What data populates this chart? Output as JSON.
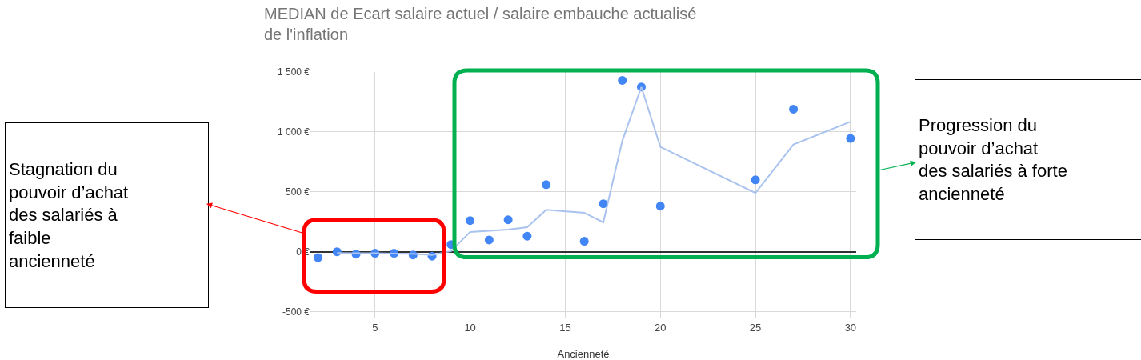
{
  "chart_data": {
    "type": "scatter",
    "title": "MEDIAN de Ecart salaire actuel / salaire embauche actualisé\nde l'inflation",
    "xlabel": "Ancienneté",
    "x": [
      2,
      3,
      4,
      5,
      6,
      7,
      8,
      9,
      10,
      11,
      12,
      13,
      14,
      16,
      17,
      18,
      19,
      20,
      25,
      27,
      30
    ],
    "series": [
      {
        "color": "#4285f4",
        "marker": "circle",
        "values": [
          -50,
          0,
          -20,
          -13,
          -13,
          -27,
          -37,
          60,
          260,
          98,
          267,
          130,
          560,
          87,
          400,
          1430,
          1375,
          380,
          600,
          1190,
          945
        ]
      },
      {
        "type": "line",
        "color": "#a9c2ee",
        "line_style": "solid",
        "x": [
          3,
          4,
          5,
          6,
          7,
          8,
          9,
          10,
          11,
          12,
          13,
          14,
          16,
          17,
          18,
          19,
          20,
          25,
          27,
          30
        ],
        "values": [
          -10,
          -12,
          -12,
          -15,
          -18,
          -28,
          5,
          165,
          175,
          185,
          205,
          350,
          325,
          245,
          925,
          1375,
          875,
          490,
          895,
          1085
        ]
      }
    ],
    "xlim": [
      1.6,
      30.3
    ],
    "xticks": [
      5,
      10,
      15,
      20,
      25,
      30
    ],
    "ylim": [
      -550,
      1500
    ],
    "yticks": [
      {
        "value": -500,
        "label": "-500 €"
      },
      {
        "value": 0,
        "label": "0 €"
      },
      {
        "value": 500,
        "label": "500 €"
      },
      {
        "value": 1000,
        "label": "1 000 €"
      },
      {
        "value": 1500,
        "label": "1 500 €"
      }
    ],
    "grid": true,
    "legend": false,
    "annotations": [
      "Stagnation du\npouvoir d’achat\ndes salariés à\nfaible\nancienneté",
      "Progression du\npouvoir d’achat\ndes salariés à forte\nancienneté"
    ]
  }
}
